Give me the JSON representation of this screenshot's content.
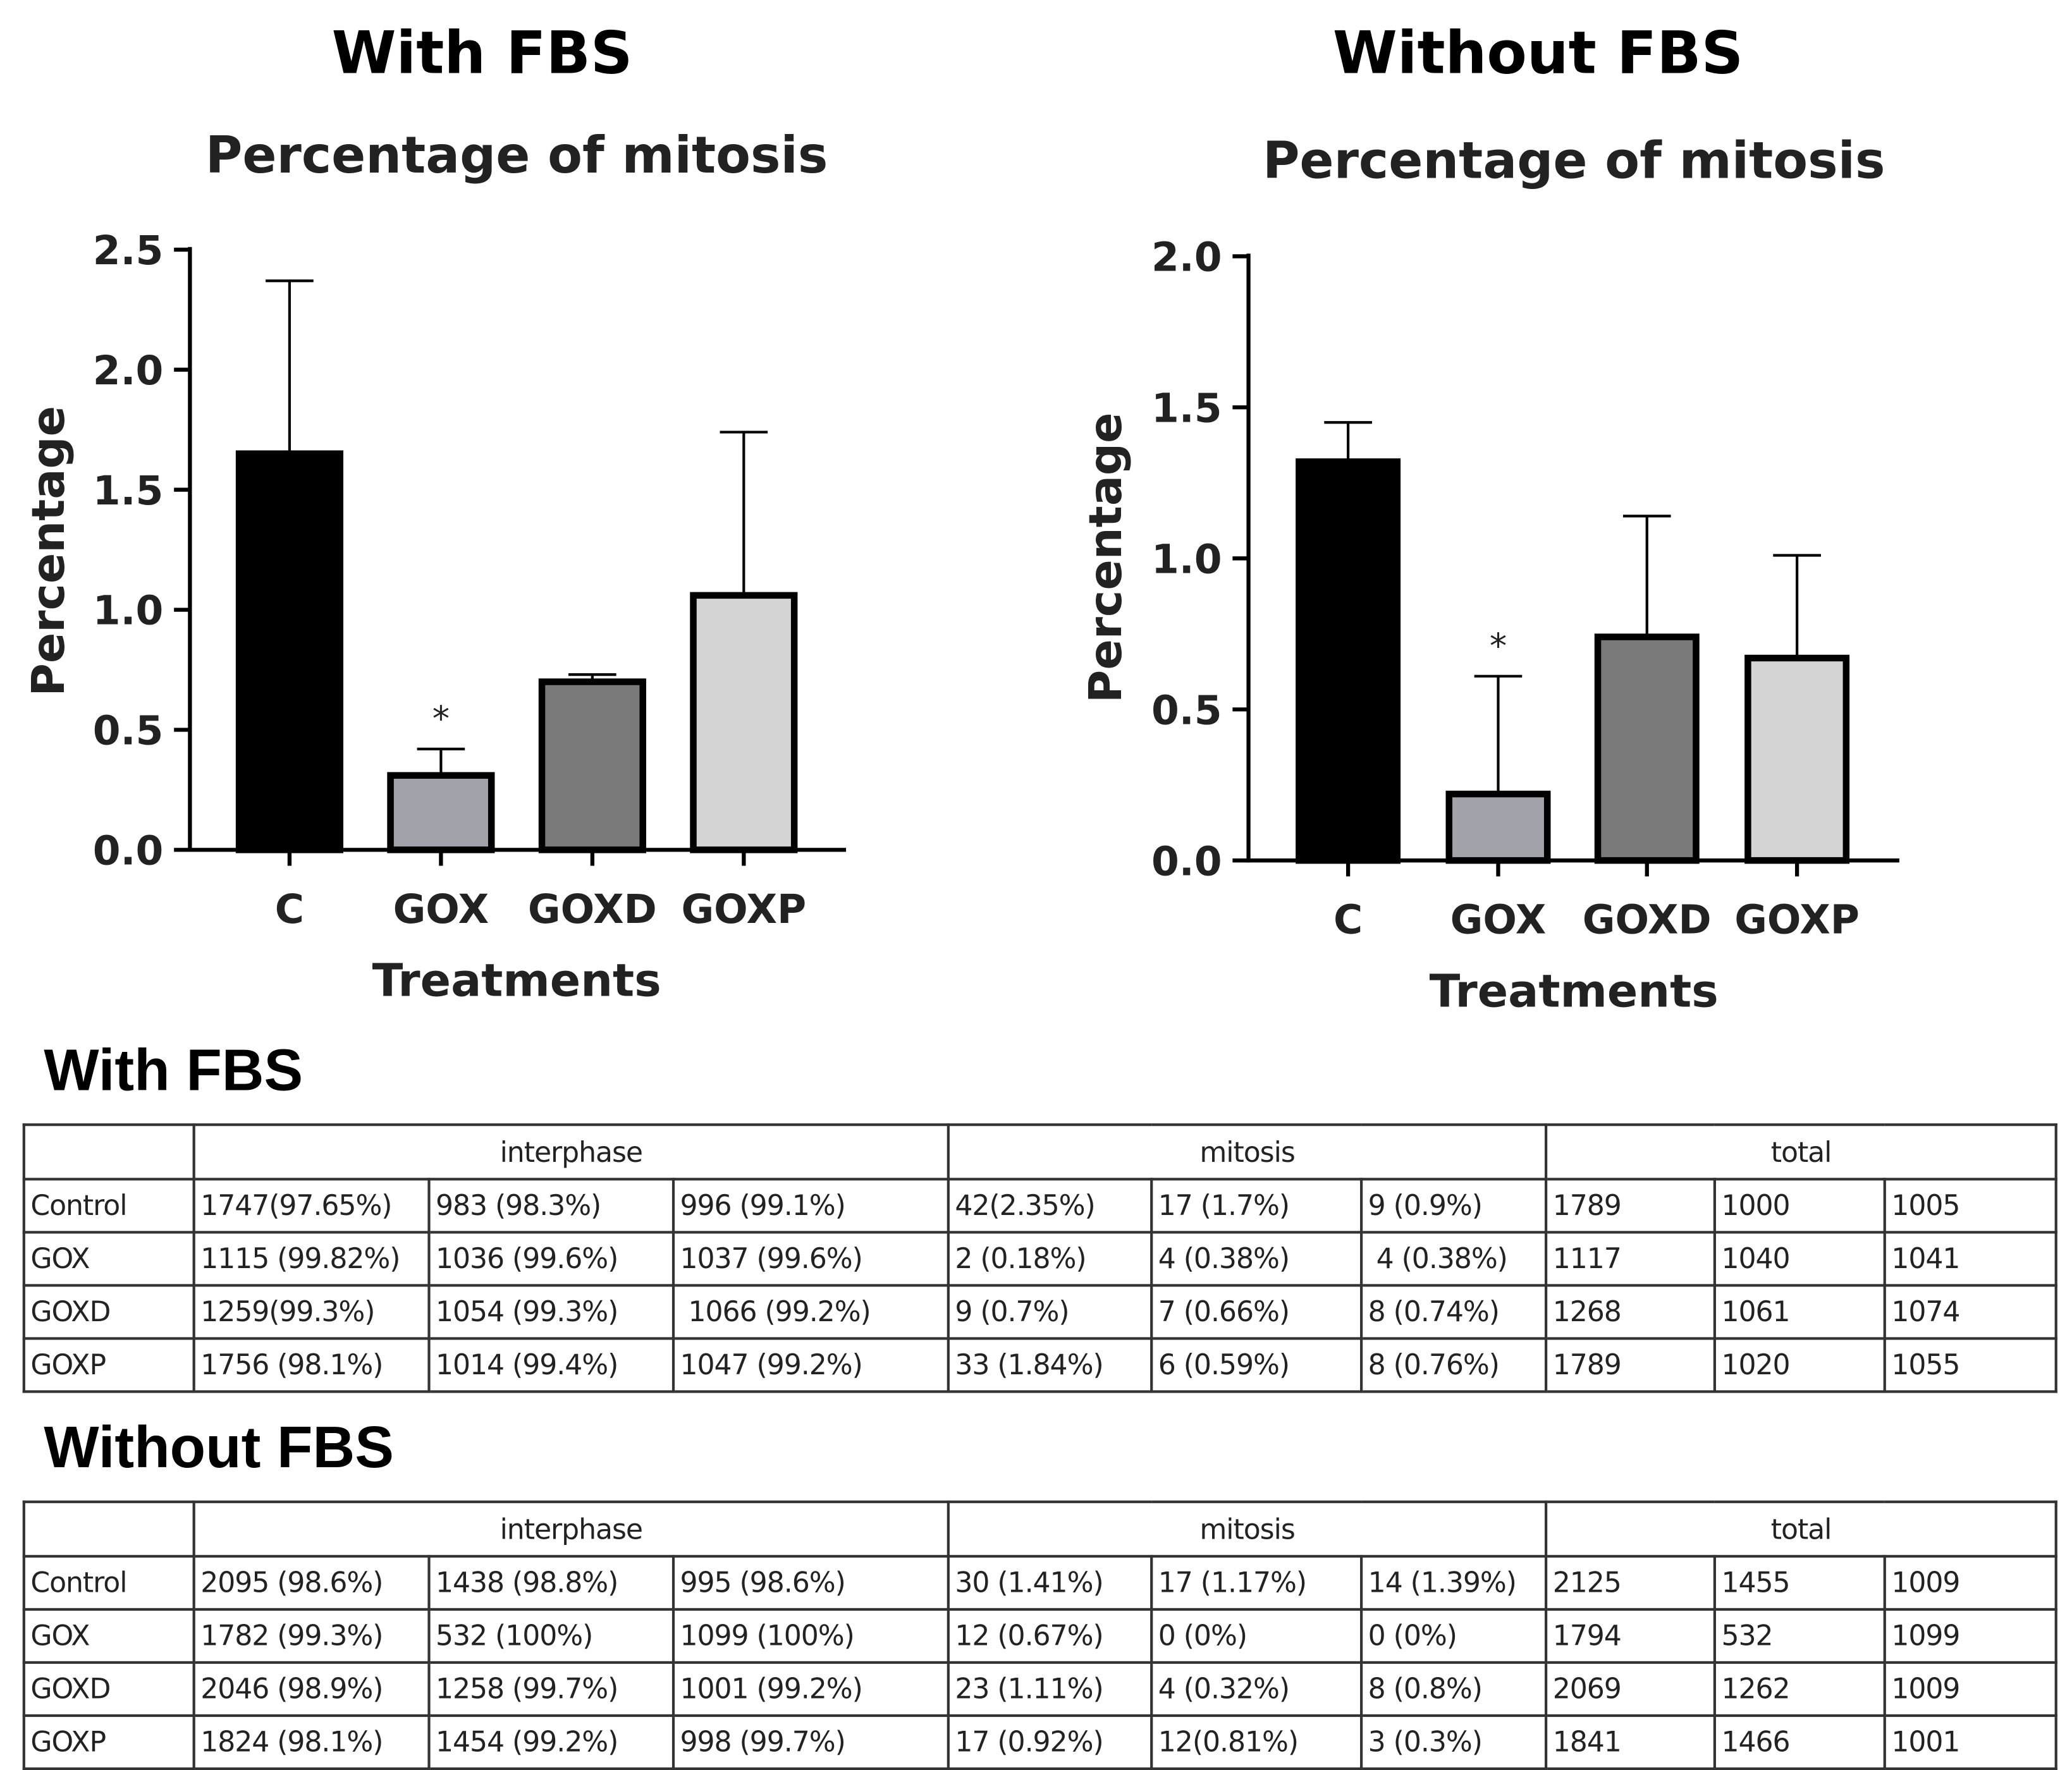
{
  "chart_data": [
    {
      "type": "bar",
      "panel_title": "With FBS",
      "title": "Percentage of mitosis",
      "xlabel": "Treatments",
      "ylabel": "Percentage",
      "categories": [
        "C",
        "GOX",
        "GOXD",
        "GOXP"
      ],
      "values": [
        1.65,
        0.31,
        0.7,
        1.06
      ],
      "error_upper": [
        2.37,
        0.42,
        0.73,
        1.74
      ],
      "significance": [
        "",
        "*",
        "",
        ""
      ],
      "ylim": [
        0,
        2.5
      ],
      "yticks": [
        "0.0",
        "0.5",
        "1.0",
        "1.5",
        "2.0",
        "2.5"
      ],
      "colors": [
        "#000000",
        "#a2a2aa",
        "#7a7a7a",
        "#d4d4d4"
      ]
    },
    {
      "type": "bar",
      "panel_title": "Without FBS",
      "title": "Percentage of mitosis",
      "xlabel": "Treatments",
      "ylabel": "Percentage",
      "categories": [
        "C",
        "GOX",
        "GOXD",
        "GOXP"
      ],
      "values": [
        1.32,
        0.22,
        0.74,
        0.67
      ],
      "error_upper": [
        1.45,
        0.61,
        1.14,
        1.01
      ],
      "significance": [
        "",
        "*",
        "",
        ""
      ],
      "ylim": [
        0,
        2.0
      ],
      "yticks": [
        "0.0",
        "0.5",
        "1.0",
        "1.5",
        "2.0"
      ],
      "colors": [
        "#000000",
        "#a2a2aa",
        "#7a7a7a",
        "#d4d4d4"
      ]
    }
  ],
  "tables": [
    {
      "title": "With FBS",
      "groups": [
        "interphase",
        "mitosis",
        "total"
      ],
      "rows": [
        {
          "label": "Control",
          "cells": [
            "1747(97.65%)",
            "983 (98.3%)",
            "996 (99.1%)",
            "42(2.35%)",
            "17 (1.7%)",
            "9 (0.9%)",
            "1789",
            "1000",
            "1005"
          ]
        },
        {
          "label": "GOX",
          "cells": [
            "1115 (99.82%)",
            "1036 (99.6%)",
            "1037 (99.6%)",
            "2 (0.18%)",
            "4 (0.38%)",
            " 4 (0.38%)",
            "1117",
            "1040",
            "1041"
          ]
        },
        {
          "label": "GOXD",
          "cells": [
            "1259(99.3%)",
            "1054 (99.3%)",
            " 1066 (99.2%)",
            "9 (0.7%)",
            "7 (0.66%)",
            "8 (0.74%)",
            "1268",
            "1061",
            "1074"
          ]
        },
        {
          "label": "GOXP",
          "cells": [
            "1756 (98.1%)",
            "1014 (99.4%)",
            "1047 (99.2%)",
            "33 (1.84%)",
            "6 (0.59%)",
            "8 (0.76%)",
            "1789",
            "1020",
            "1055"
          ]
        }
      ]
    },
    {
      "title": "Without FBS",
      "groups": [
        "interphase",
        "mitosis",
        "total"
      ],
      "rows": [
        {
          "label": "Control",
          "cells": [
            "2095 (98.6%)",
            "1438 (98.8%)",
            "995 (98.6%)",
            "30 (1.41%)",
            "17 (1.17%)",
            "14 (1.39%)",
            "2125",
            "1455",
            "1009"
          ]
        },
        {
          "label": "GOX",
          "cells": [
            "1782 (99.3%)",
            "532 (100%)",
            "1099 (100%)",
            "12 (0.67%)",
            "0 (0%)",
            "0 (0%)",
            "1794",
            "532",
            "1099"
          ]
        },
        {
          "label": "GOXD",
          "cells": [
            "2046 (98.9%)",
            "1258 (99.7%)",
            "1001 (99.2%)",
            "23 (1.11%)",
            "4 (0.32%)",
            "8 (0.8%)",
            "2069",
            "1262",
            "1009"
          ]
        },
        {
          "label": "GOXP",
          "cells": [
            "1824 (98.1%)",
            "1454 (99.2%)",
            "998 (99.7%)",
            "17 (0.92%)",
            "12(0.81%)",
            "3 (0.3%)",
            "1841",
            "1466",
            "1001"
          ]
        }
      ]
    }
  ]
}
